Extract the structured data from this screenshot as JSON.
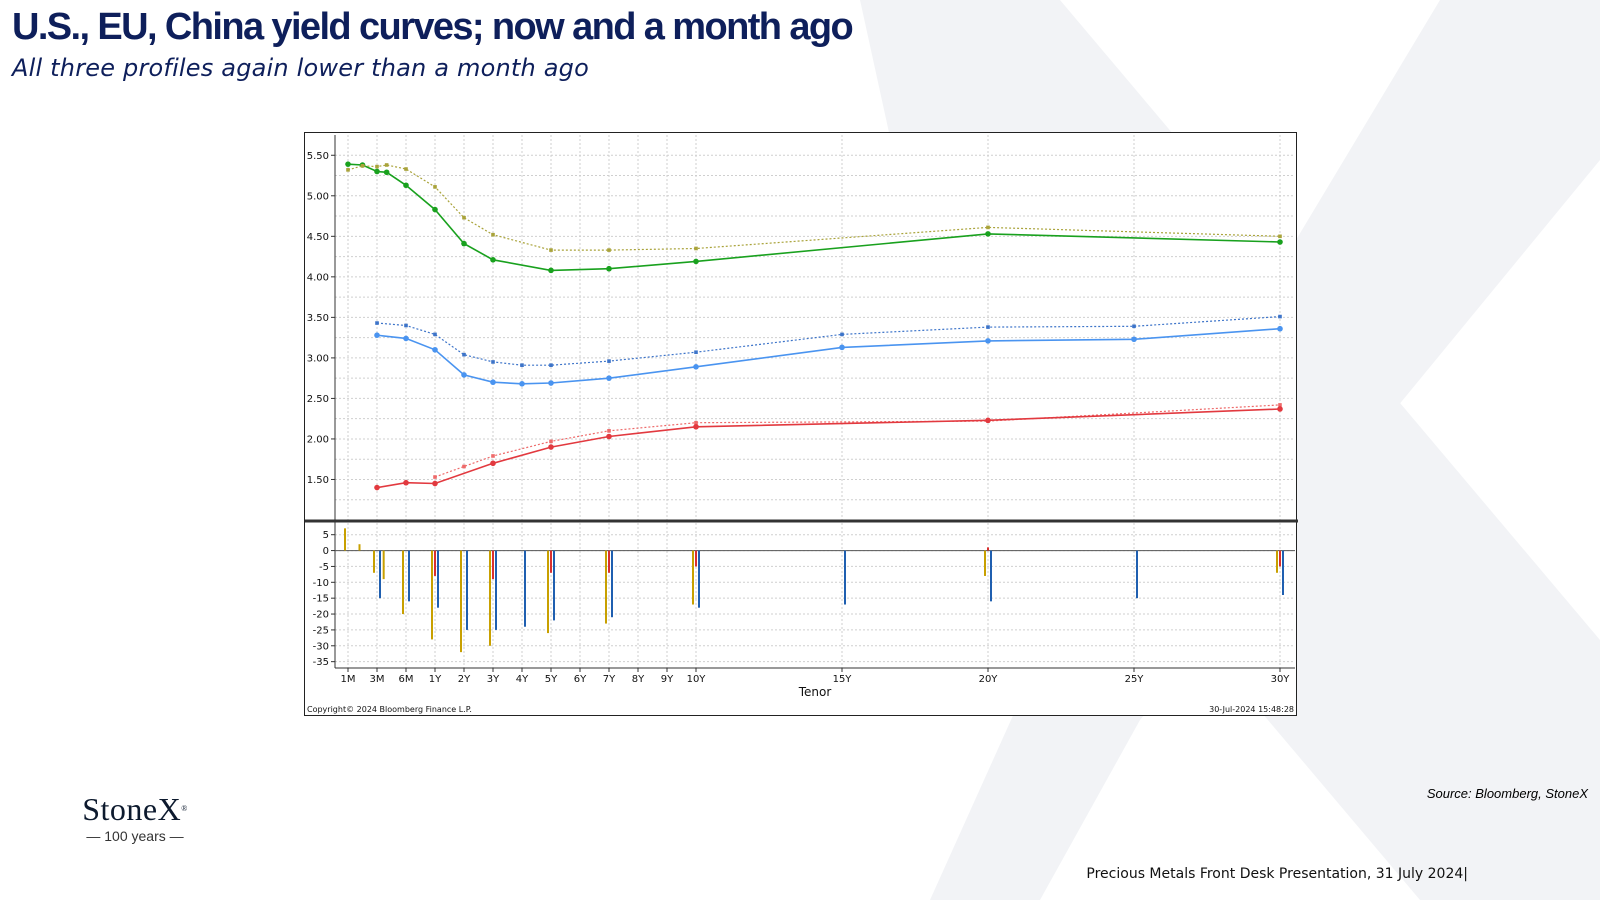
{
  "header": {
    "title": "U.S., EU, China yield curves; now and a month ago",
    "subtitle": "All three profiles again lower than a month ago"
  },
  "footer": {
    "source": "Source: Bloomberg, StoneX",
    "presentation": "Precious Metals Front Desk Presentation, 31 July 2024|"
  },
  "logo": {
    "name": "StoneX",
    "mark": "®",
    "tagline": "— 100 years —"
  },
  "colors": {
    "us_now": "#19a11e",
    "us_month_ago": "#a9a33a",
    "eu_now": "#4a94f0",
    "eu_month_ago": "#3d74c9",
    "china_now": "#e2393f",
    "china_month_ago": "#ee6a6a",
    "bar_us": "#c8a000",
    "bar_eu": "#1f5fb0",
    "bar_china": "#d93030"
  },
  "chart_data": {
    "type": "line",
    "xlabel": "Tenor",
    "x_ticks": [
      "1M",
      "3M",
      "6M",
      "1Y",
      "2Y",
      "3Y",
      "4Y",
      "5Y",
      "6Y",
      "7Y",
      "8Y",
      "9Y",
      "10Y",
      "15Y",
      "20Y",
      "25Y",
      "30Y"
    ],
    "y_ticks": [
      "5.50",
      "5.00",
      "4.50",
      "4.00",
      "3.50",
      "3.00",
      "2.50",
      "2.00",
      "1.50"
    ],
    "ylim": [
      1.0,
      5.75
    ],
    "grid": true,
    "copyright": "Copyright© 2024 Bloomberg Finance L.P.",
    "timestamp": "30-Jul-2024 15:48:28",
    "series": [
      {
        "style": "now",
        "colorKey": "us_now",
        "x": [
          "1M",
          "2M",
          "3M",
          "4M",
          "6M",
          "1Y",
          "2Y",
          "3Y",
          "5Y",
          "7Y",
          "10Y",
          "20Y",
          "30Y"
        ],
        "values": [
          5.39,
          5.38,
          5.3,
          5.29,
          5.13,
          4.83,
          4.41,
          4.21,
          4.08,
          4.1,
          4.19,
          4.53,
          4.43
        ]
      },
      {
        "style": "month_ago",
        "colorKey": "us_month_ago",
        "x": [
          "1M",
          "2M",
          "3M",
          "4M",
          "6M",
          "1Y",
          "2Y",
          "3Y",
          "5Y",
          "7Y",
          "10Y",
          "20Y",
          "30Y"
        ],
        "values": [
          5.32,
          5.37,
          5.36,
          5.38,
          5.33,
          5.11,
          4.73,
          4.52,
          4.33,
          4.33,
          4.35,
          4.61,
          4.5
        ]
      },
      {
        "style": "month_ago",
        "colorKey": "eu_month_ago",
        "x": [
          "3M",
          "6M",
          "1Y",
          "2Y",
          "3Y",
          "4Y",
          "5Y",
          "7Y",
          "10Y",
          "15Y",
          "20Y",
          "25Y",
          "30Y"
        ],
        "values": [
          3.43,
          3.4,
          3.29,
          3.04,
          2.95,
          2.91,
          2.91,
          2.96,
          3.07,
          3.29,
          3.38,
          3.39,
          3.51
        ]
      },
      {
        "style": "now",
        "colorKey": "eu_now",
        "x": [
          "3M",
          "6M",
          "1Y",
          "2Y",
          "3Y",
          "4Y",
          "5Y",
          "7Y",
          "10Y",
          "15Y",
          "20Y",
          "25Y",
          "30Y"
        ],
        "values": [
          3.28,
          3.24,
          3.1,
          2.79,
          2.7,
          2.68,
          2.69,
          2.75,
          2.89,
          3.13,
          3.21,
          3.23,
          3.36
        ]
      },
      {
        "style": "month_ago",
        "colorKey": "china_month_ago",
        "x": [
          "1Y",
          "2Y",
          "3Y",
          "5Y",
          "7Y",
          "10Y",
          "20Y",
          "30Y"
        ],
        "values": [
          1.53,
          1.66,
          1.79,
          1.97,
          2.1,
          2.2,
          2.22,
          2.42
        ]
      },
      {
        "style": "now",
        "colorKey": "china_now",
        "x": [
          "3M",
          "6M",
          "1Y",
          "3Y",
          "5Y",
          "7Y",
          "10Y",
          "20Y",
          "30Y"
        ],
        "values": [
          1.4,
          1.46,
          1.45,
          1.7,
          1.9,
          2.03,
          2.15,
          2.23,
          2.37
        ]
      }
    ],
    "change_panel": {
      "type": "bar",
      "unit_hint": "bp",
      "y_ticks": [
        "5",
        "0",
        "-5",
        "-10",
        "-15",
        "-20",
        "-25",
        "-30",
        "-35"
      ],
      "ylim": [
        -37,
        9
      ],
      "bars": [
        {
          "x": "1M",
          "us": 7
        },
        {
          "x": "2M",
          "us": 2
        },
        {
          "x": "3M",
          "us": -7,
          "eu": -15
        },
        {
          "x": "4M",
          "us": -9
        },
        {
          "x": "6M",
          "us": -20,
          "eu": -16
        },
        {
          "x": "1Y",
          "us": -28,
          "eu": -18,
          "china": -8
        },
        {
          "x": "2Y",
          "us": -32,
          "eu": -25
        },
        {
          "x": "3Y",
          "us": -30,
          "eu": -25,
          "china": -9
        },
        {
          "x": "4Y",
          "eu": -24
        },
        {
          "x": "5Y",
          "us": -26,
          "eu": -22,
          "china": -7
        },
        {
          "x": "7Y",
          "us": -23,
          "eu": -21,
          "china": -7
        },
        {
          "x": "10Y",
          "us": -17,
          "eu": -18,
          "china": -5
        },
        {
          "x": "15Y",
          "eu": -17
        },
        {
          "x": "20Y",
          "us": -8,
          "eu": -16,
          "china": 1
        },
        {
          "x": "25Y",
          "eu": -15
        },
        {
          "x": "30Y",
          "us": -7,
          "eu": -14,
          "china": -5
        }
      ]
    }
  }
}
